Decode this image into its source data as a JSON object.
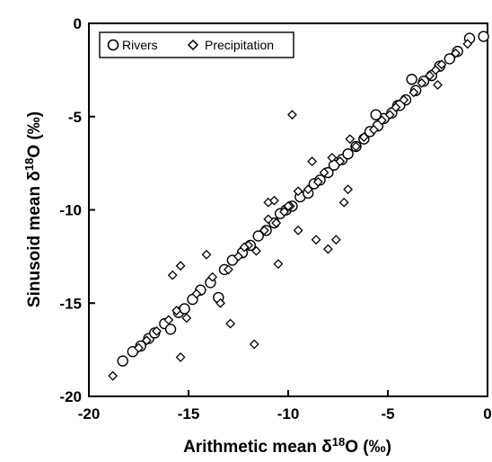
{
  "chart_data": {
    "type": "scatter",
    "xlabel": "Arithmetic mean δ18O (‰)",
    "ylabel": "Sinusoid mean δ18O (‰)",
    "xlim": [
      -20,
      0
    ],
    "ylim": [
      -20,
      0
    ],
    "xticks": [
      "-20",
      "-15",
      "-10",
      "-5",
      "0"
    ],
    "yticks": [
      "-20",
      "-15",
      "-10",
      "-5",
      "0"
    ],
    "grid": false,
    "legend_position": "top-left",
    "series": [
      {
        "name": "Rivers",
        "marker": "circle",
        "points": [
          [
            -18.3,
            -18.1
          ],
          [
            -17.8,
            -17.6
          ],
          [
            -17.4,
            -17.3
          ],
          [
            -17.0,
            -16.9
          ],
          [
            -16.7,
            -16.6
          ],
          [
            -16.2,
            -16.1
          ],
          [
            -15.9,
            -16.4
          ],
          [
            -15.5,
            -15.5
          ],
          [
            -15.2,
            -15.3
          ],
          [
            -14.8,
            -14.8
          ],
          [
            -14.4,
            -14.3
          ],
          [
            -13.9,
            -13.9
          ],
          [
            -13.5,
            -14.7
          ],
          [
            -13.2,
            -13.2
          ],
          [
            -12.8,
            -12.7
          ],
          [
            -12.3,
            -12.3
          ],
          [
            -11.9,
            -11.9
          ],
          [
            -11.5,
            -11.4
          ],
          [
            -11.1,
            -11.1
          ],
          [
            -10.7,
            -10.7
          ],
          [
            -10.4,
            -10.2
          ],
          [
            -10.1,
            -10.0
          ],
          [
            -9.8,
            -9.8
          ],
          [
            -9.4,
            -9.3
          ],
          [
            -9.0,
            -9.1
          ],
          [
            -8.7,
            -8.6
          ],
          [
            -8.4,
            -8.4
          ],
          [
            -8.0,
            -8.0
          ],
          [
            -7.7,
            -7.6
          ],
          [
            -7.3,
            -7.3
          ],
          [
            -7.0,
            -7.0
          ],
          [
            -6.6,
            -6.6
          ],
          [
            -6.2,
            -6.2
          ],
          [
            -5.9,
            -5.8
          ],
          [
            -5.5,
            -5.5
          ],
          [
            -5.2,
            -5.1
          ],
          [
            -4.8,
            -4.8
          ],
          [
            -4.5,
            -4.4
          ],
          [
            -4.1,
            -4.1
          ],
          [
            -3.6,
            -3.6
          ],
          [
            -3.2,
            -3.1
          ],
          [
            -2.8,
            -2.8
          ],
          [
            -2.4,
            -2.3
          ],
          [
            -1.9,
            -1.9
          ],
          [
            -1.5,
            -1.5
          ],
          [
            -0.9,
            -0.8
          ],
          [
            -0.2,
            -0.7
          ],
          [
            -3.8,
            -3.0
          ],
          [
            -5.6,
            -4.9
          ],
          [
            -4.4,
            -4.4
          ]
        ]
      },
      {
        "name": "Precipitation",
        "marker": "diamond",
        "points": [
          [
            -18.8,
            -18.9
          ],
          [
            -17.5,
            -17.4
          ],
          [
            -17.1,
            -17.0
          ],
          [
            -16.6,
            -16.5
          ],
          [
            -16.0,
            -15.9
          ],
          [
            -15.6,
            -15.4
          ],
          [
            -15.4,
            -17.9
          ],
          [
            -15.4,
            -13.0
          ],
          [
            -15.8,
            -13.5
          ],
          [
            -15.1,
            -15.8
          ],
          [
            -14.6,
            -14.5
          ],
          [
            -14.1,
            -12.4
          ],
          [
            -13.4,
            -15.0
          ],
          [
            -13.0,
            -13.2
          ],
          [
            -12.5,
            -12.5
          ],
          [
            -12.9,
            -16.1
          ],
          [
            -12.0,
            -11.9
          ],
          [
            -11.7,
            -17.2
          ],
          [
            -11.6,
            -12.2
          ],
          [
            -11.2,
            -11.1
          ],
          [
            -11.0,
            -10.5
          ],
          [
            -10.6,
            -10.7
          ],
          [
            -11.0,
            -9.6
          ],
          [
            -10.7,
            -9.5
          ],
          [
            -10.2,
            -10.1
          ],
          [
            -9.8,
            -4.9
          ],
          [
            -9.9,
            -9.8
          ],
          [
            -10.5,
            -12.9
          ],
          [
            -9.5,
            -11.1
          ],
          [
            -9.0,
            -8.9
          ],
          [
            -9.5,
            -9.0
          ],
          [
            -8.8,
            -7.4
          ],
          [
            -8.6,
            -11.6
          ],
          [
            -8.5,
            -8.5
          ],
          [
            -8.0,
            -12.1
          ],
          [
            -7.6,
            -11.6
          ],
          [
            -7.4,
            -7.4
          ],
          [
            -7.0,
            -8.9
          ],
          [
            -7.2,
            -9.6
          ],
          [
            -6.6,
            -6.6
          ],
          [
            -6.2,
            -6.1
          ],
          [
            -6.9,
            -6.2
          ],
          [
            -5.7,
            -5.7
          ],
          [
            -5.3,
            -5.2
          ],
          [
            -4.9,
            -4.9
          ],
          [
            -4.6,
            -4.5
          ],
          [
            -4.2,
            -4.1
          ],
          [
            -3.7,
            -3.7
          ],
          [
            -3.3,
            -3.2
          ],
          [
            -2.9,
            -2.8
          ],
          [
            -2.6,
            -2.5
          ],
          [
            -2.3,
            -2.2
          ],
          [
            -2.5,
            -3.3
          ],
          [
            -1.6,
            -1.6
          ],
          [
            -1.0,
            -1.1
          ],
          [
            -8.2,
            -8.0
          ],
          [
            -7.8,
            -7.2
          ],
          [
            -13.8,
            -13.6
          ],
          [
            -12.2,
            -12.0
          ],
          [
            -10.0,
            -9.8
          ]
        ]
      }
    ]
  }
}
